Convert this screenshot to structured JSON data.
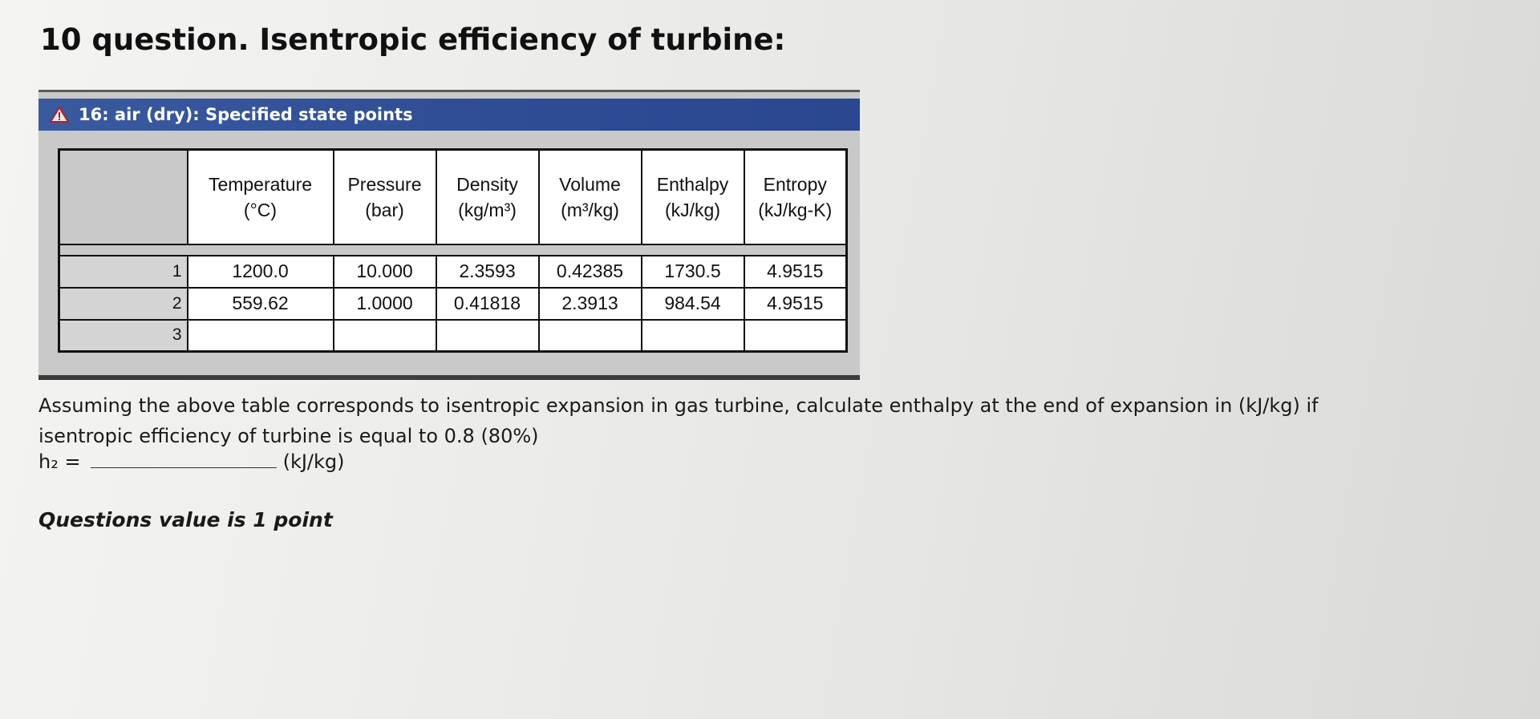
{
  "page_title": "10 question. Isentropic efficiency of turbine:",
  "state_window": {
    "title": "16: air (dry): Specified state points",
    "icon": "warning-triangle-icon",
    "columns": [
      {
        "name": "Temperature",
        "unit": "(°C)"
      },
      {
        "name": "Pressure",
        "unit": "(bar)"
      },
      {
        "name": "Density",
        "unit": "(kg/m³)"
      },
      {
        "name": "Volume",
        "unit": "(m³/kg)"
      },
      {
        "name": "Enthalpy",
        "unit": "(kJ/kg)"
      },
      {
        "name": "Entropy",
        "unit": "(kJ/kg-K)"
      }
    ],
    "rows": [
      {
        "index": "1",
        "values": [
          "1200.0",
          "10.000",
          "2.3593",
          "0.42385",
          "1730.5",
          "4.9515"
        ]
      },
      {
        "index": "2",
        "values": [
          "559.62",
          "1.0000",
          "0.41818",
          "2.3913",
          "984.54",
          "4.9515"
        ]
      },
      {
        "index": "3",
        "values": [
          "",
          "",
          "",
          "",
          "",
          ""
        ]
      }
    ]
  },
  "question": {
    "text": "Assuming the above table corresponds to isentropic expansion in gas turbine, calculate enthalpy at the end of expansion in (kJ/kg) if isentropic efficiency of turbine is equal to 0.8 (80%)",
    "answer_label": "h₂ =",
    "answer_value": "",
    "answer_unit": "(kJ/kg)"
  },
  "points_note": "Questions value is 1 point"
}
